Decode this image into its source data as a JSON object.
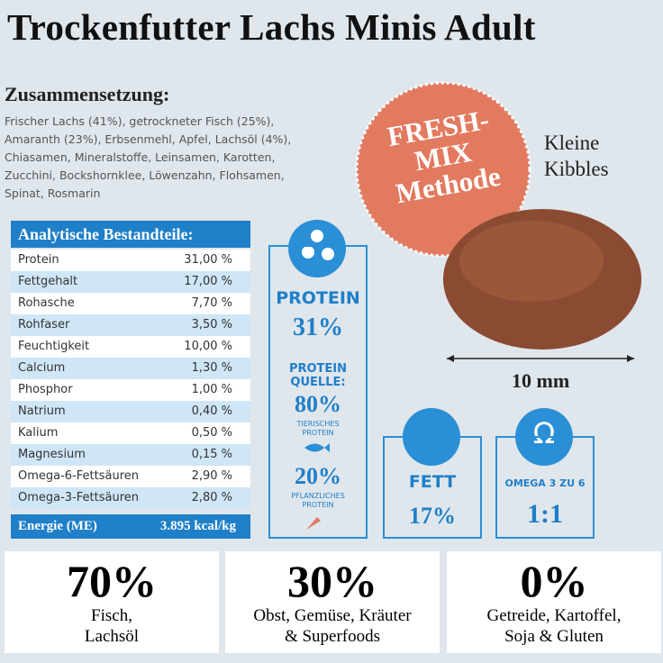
{
  "header": {
    "title": "Trockenfutter Lachs Minis Adult"
  },
  "composition": {
    "heading": "Zusammensetzung:",
    "lines": [
      "Frischer Lachs (41%), getrockneter Fisch (25%),",
      "Amaranth (23%), Erbsenmehl, Apfel, Lachsöl (4%),",
      "Chiasamen, Mineralstoffe, Leinsamen, Karotten,",
      "Zucchini, Bockshornklee, Löwenzahn, Flohsamen,",
      "Spinat, Rosmarin"
    ]
  },
  "badge": {
    "lines": [
      "FRESH-",
      "MIX",
      "Methode"
    ]
  },
  "kibble": {
    "label": [
      "Kleine",
      "Kibbles"
    ],
    "size": "10 mm"
  },
  "table": {
    "header": "Analytische Bestandteile:",
    "rows": [
      [
        "Protein",
        "31,00 %"
      ],
      [
        "Fettgehalt",
        "17,00 %"
      ],
      [
        "Rohasche",
        "7,70 %"
      ],
      [
        "Rohfaser",
        "3,50 %"
      ],
      [
        "Feuchtigkeit",
        "10,00 %"
      ],
      [
        "Calcium",
        "1,30 %"
      ],
      [
        "Phosphor",
        "1,00 %"
      ],
      [
        "Natrium",
        "0,40 %"
      ],
      [
        "Kalium",
        "0,50 %"
      ],
      [
        "Magnesium",
        "0,15 %"
      ],
      [
        "Omega-6-Fettsäuren",
        "2,90 %"
      ],
      [
        "Omega-3-Fettsäuren",
        "2,80 %"
      ]
    ],
    "footer": [
      "Energie (ME)",
      "3.895 kcal/kg"
    ]
  },
  "protein_card": {
    "title": "PROTEIN",
    "value": "31%",
    "source_title": [
      "PROTEIN",
      "QUELLE:"
    ],
    "animal_value": "80%",
    "animal_label": [
      "TIERISCHES",
      "PROTEIN"
    ],
    "plant_value": "20%",
    "plant_label": [
      "PFLANZLICHES",
      "PROTEIN"
    ]
  },
  "fat_card": {
    "title": "FETT",
    "value": "17%"
  },
  "omega_card": {
    "symbol": "Ω",
    "title": "OMEGA 3 ZU 6",
    "value": "1:1"
  },
  "boxes": [
    {
      "value": "70%",
      "lines": [
        "Fisch,",
        "Lachsöl"
      ]
    },
    {
      "value": "30%",
      "lines": [
        "Obst, Gemüse, Kräuter",
        "& Superfoods"
      ]
    },
    {
      "value": "0%",
      "lines": [
        "Getreide, Kartoffel,",
        "Soja & Gluten"
      ]
    }
  ]
}
